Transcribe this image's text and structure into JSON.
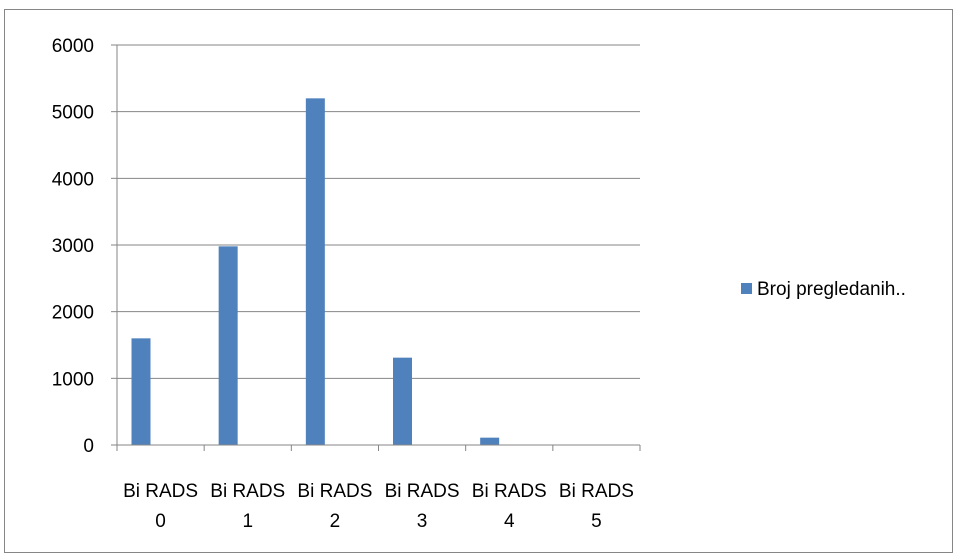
{
  "chart_data": {
    "type": "bar",
    "categories": [
      [
        "Bi RADS",
        "0"
      ],
      [
        "Bi RADS",
        "1"
      ],
      [
        "Bi RADS",
        "2"
      ],
      [
        "Bi RADS",
        "3"
      ],
      [
        "Bi RADS",
        "4"
      ],
      [
        "Bi RADS",
        "5"
      ]
    ],
    "series": [
      {
        "name": "Broj pregledanih..",
        "values": [
          1600,
          2980,
          5200,
          1310,
          110,
          0
        ]
      }
    ],
    "yticks": [
      "0",
      "1000",
      "2000",
      "3000",
      "4000",
      "5000",
      "6000"
    ],
    "ylim": [
      0,
      6000
    ],
    "grid": true,
    "legend_position": "right",
    "colors": {
      "bar": "#4f81bd",
      "grid": "#868686",
      "axis": "#868686"
    }
  }
}
